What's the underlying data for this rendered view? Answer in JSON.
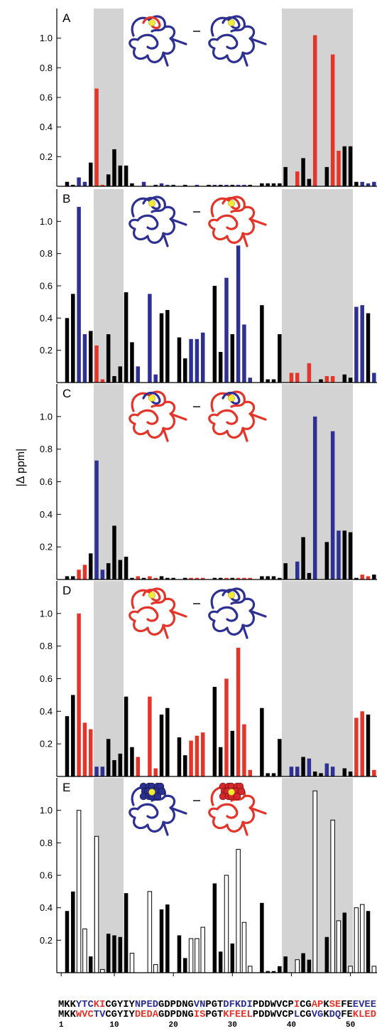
{
  "chart_data": [
    {
      "type": "bar",
      "title": "A",
      "x": [
        1,
        2,
        3,
        4,
        5,
        6,
        7,
        8,
        9,
        10,
        11,
        12,
        13,
        14,
        15,
        16,
        17,
        18,
        19,
        20,
        21,
        22,
        23,
        24,
        25,
        26,
        27,
        28,
        29,
        30,
        31,
        32,
        33,
        34,
        35,
        36,
        37,
        38,
        39,
        40,
        41,
        42,
        43,
        44,
        45,
        46,
        47,
        48,
        49,
        50,
        51,
        52,
        53,
        54
      ],
      "xlim": [
        0.5,
        54.5
      ],
      "values": [
        null,
        0.03,
        0.01,
        0.06,
        0.03,
        0.16,
        0.66,
        0.01,
        0.08,
        0.25,
        0.14,
        0.14,
        0.02,
        null,
        0.03,
        null,
        0.01,
        0.02,
        0.01,
        0.01,
        null,
        0.01,
        null,
        0.01,
        null,
        0.01,
        0.01,
        0.01,
        0.01,
        0.01,
        0.01,
        0.01,
        0.01,
        null,
        0.02,
        0.02,
        0.02,
        0.02,
        0.13,
        null,
        0.1,
        0.19,
        0.05,
        1.02,
        null,
        0.13,
        0.89,
        0.24,
        0.27,
        0.27,
        0.03,
        0.03,
        0.02,
        0.03
      ],
      "colors": [
        null,
        "#000",
        "#000",
        "#2e3192",
        "#2e3192",
        "#000",
        "#e4352b",
        "#e4352b",
        "#000",
        "#000",
        "#000",
        "#000",
        "#000",
        null,
        "#2e3192",
        null,
        "#000",
        "#2e3192",
        "#2e3192",
        "#000",
        null,
        "#000",
        null,
        "#2e3192",
        null,
        "#000",
        "#2e3192",
        "#000",
        "#2e3192",
        "#000",
        "#2e3192",
        "#2e3192",
        "#000",
        null,
        "#000",
        "#000",
        "#000",
        "#000",
        "#000",
        null,
        "#e4352b",
        "#000",
        "#000",
        "#e4352b",
        null,
        "#000",
        "#e4352b",
        "#e4352b",
        "#000",
        "#000",
        "#000",
        "#2e3192",
        "#2e3192",
        "#2e3192"
      ],
      "ylim": [
        0,
        1.2
      ],
      "yticks": [
        0.2,
        0.4,
        0.6,
        0.8,
        {
          "value": 1.0,
          "label": "1.0"
        }
      ]
    },
    {
      "type": "bar",
      "title": "B",
      "x": [
        1,
        2,
        3,
        4,
        5,
        6,
        7,
        8,
        9,
        10,
        11,
        12,
        13,
        14,
        15,
        16,
        17,
        18,
        19,
        20,
        21,
        22,
        23,
        24,
        25,
        26,
        27,
        28,
        29,
        30,
        31,
        32,
        33,
        34,
        35,
        36,
        37,
        38,
        39,
        40,
        41,
        42,
        43,
        44,
        45,
        46,
        47,
        48,
        49,
        50,
        51,
        52,
        53,
        54
      ],
      "xlim": [
        0.5,
        54.5
      ],
      "values": [
        null,
        0.4,
        0.55,
        1.09,
        0.3,
        0.32,
        0.23,
        0.02,
        0.3,
        0.04,
        0.1,
        0.56,
        0.25,
        0.1,
        null,
        0.55,
        0.05,
        0.43,
        0.45,
        null,
        0.28,
        0.15,
        0.27,
        0.27,
        0.31,
        null,
        0.6,
        0.19,
        0.65,
        0.3,
        0.85,
        0.36,
        0.03,
        null,
        0.48,
        0.02,
        0.02,
        0.3,
        null,
        0.06,
        0.06,
        null,
        0.12,
        null,
        0.02,
        0.04,
        0.04,
        null,
        0.05,
        0.03,
        0.47,
        0.48,
        0.43,
        0.06
      ],
      "colors": [
        null,
        "#000",
        "#000",
        "#2e3192",
        "#2e3192",
        "#000",
        "#e4352b",
        "#e4352b",
        "#000",
        "#000",
        "#000",
        "#000",
        "#000",
        "#2e3192",
        null,
        "#2e3192",
        "#2e3192",
        "#000",
        "#000",
        null,
        "#000",
        "#000",
        "#2e3192",
        "#2e3192",
        "#2e3192",
        null,
        "#000",
        "#000",
        "#2e3192",
        "#000",
        "#2e3192",
        "#2e3192",
        "#2e3192",
        null,
        "#000",
        "#000",
        "#000",
        "#000",
        null,
        "#e4352b",
        "#e4352b",
        null,
        "#e4352b",
        null,
        "#000",
        "#e4352b",
        "#e4352b",
        null,
        "#000",
        "#000",
        "#2e3192",
        "#2e3192",
        "#000",
        "#2e3192"
      ],
      "ylim": [
        0,
        1.2
      ],
      "yticks": [
        0.2,
        0.4,
        0.6,
        0.8,
        {
          "value": 1.0,
          "label": "1.0"
        }
      ]
    },
    {
      "type": "bar",
      "title": "C",
      "ylabel": "|Δ ppm|",
      "x": [
        1,
        2,
        3,
        4,
        5,
        6,
        7,
        8,
        9,
        10,
        11,
        12,
        13,
        14,
        15,
        16,
        17,
        18,
        19,
        20,
        21,
        22,
        23,
        24,
        25,
        26,
        27,
        28,
        29,
        30,
        31,
        32,
        33,
        34,
        35,
        36,
        37,
        38,
        39,
        40,
        41,
        42,
        43,
        44,
        45,
        46,
        47,
        48,
        49,
        50,
        51,
        52,
        53,
        54
      ],
      "xlim": [
        0.5,
        54.5
      ],
      "values": [
        null,
        0.02,
        0.02,
        0.06,
        0.09,
        0.16,
        0.73,
        0.06,
        0.1,
        0.33,
        0.12,
        0.14,
        0.01,
        0.02,
        0.01,
        0.02,
        0.01,
        0.02,
        0.01,
        0.01,
        null,
        0.01,
        0.01,
        0.01,
        0.01,
        null,
        0.01,
        0.01,
        0.01,
        0.01,
        0.01,
        0.01,
        0.01,
        null,
        0.02,
        0.02,
        0.02,
        0.01,
        0.1,
        null,
        0.11,
        0.26,
        0.04,
        1.0,
        null,
        0.23,
        0.91,
        0.3,
        0.3,
        0.29,
        0.01,
        0.03,
        0.02,
        0.03
      ],
      "colors": [
        null,
        "#000",
        "#000",
        "#e4352b",
        "#e4352b",
        "#000",
        "#2e3192",
        "#2e3192",
        "#000",
        "#000",
        "#000",
        "#000",
        "#000",
        "#e4352b",
        "#000",
        "#e4352b",
        "#e4352b",
        "#000",
        "#000",
        "#000",
        null,
        "#000",
        "#e4352b",
        "#e4352b",
        "#e4352b",
        null,
        "#000",
        "#000",
        "#e4352b",
        "#000",
        "#e4352b",
        "#e4352b",
        "#e4352b",
        null,
        "#000",
        "#000",
        "#000",
        "#000",
        "#000",
        null,
        "#2e3192",
        "#000",
        "#000",
        "#2e3192",
        null,
        "#000",
        "#2e3192",
        "#2e3192",
        "#000",
        "#000",
        "#000",
        "#e4352b",
        "#e4352b",
        "#000"
      ],
      "ylim": [
        0,
        1.2
      ],
      "yticks": [
        0.2,
        0.4,
        0.6,
        0.8,
        {
          "value": 1.0,
          "label": "1.0"
        }
      ]
    },
    {
      "type": "bar",
      "title": "D",
      "x": [
        1,
        2,
        3,
        4,
        5,
        6,
        7,
        8,
        9,
        10,
        11,
        12,
        13,
        14,
        15,
        16,
        17,
        18,
        19,
        20,
        21,
        22,
        23,
        24,
        25,
        26,
        27,
        28,
        29,
        30,
        31,
        32,
        33,
        34,
        35,
        36,
        37,
        38,
        39,
        40,
        41,
        42,
        43,
        44,
        45,
        46,
        47,
        48,
        49,
        50,
        51,
        52,
        53,
        54
      ],
      "xlim": [
        0.5,
        54.5
      ],
      "values": [
        null,
        0.37,
        0.5,
        1.0,
        0.33,
        0.29,
        0.06,
        0.06,
        0.23,
        0.1,
        0.14,
        0.49,
        0.18,
        0.12,
        null,
        0.49,
        0.05,
        0.38,
        0.42,
        null,
        0.24,
        0.13,
        0.22,
        0.25,
        0.27,
        null,
        0.55,
        0.18,
        0.6,
        0.28,
        0.79,
        0.32,
        0.04,
        null,
        0.42,
        0.02,
        0.02,
        0.23,
        null,
        0.06,
        0.06,
        0.12,
        0.11,
        0.03,
        0.02,
        0.08,
        0.06,
        null,
        0.05,
        0.03,
        0.36,
        0.4,
        0.38,
        0.04
      ],
      "colors": [
        null,
        "#000",
        "#000",
        "#e4352b",
        "#e4352b",
        "#e4352b",
        "#2e3192",
        "#2e3192",
        "#000",
        "#000",
        "#000",
        "#000",
        "#000",
        "#e4352b",
        null,
        "#e4352b",
        "#e4352b",
        "#000",
        "#000",
        null,
        "#000",
        "#000",
        "#e4352b",
        "#e4352b",
        "#e4352b",
        null,
        "#000",
        "#000",
        "#e4352b",
        "#000",
        "#e4352b",
        "#e4352b",
        "#e4352b",
        null,
        "#000",
        "#000",
        "#000",
        "#000",
        null,
        "#2e3192",
        "#2e3192",
        "#000",
        "#2e3192",
        "#000",
        "#000",
        "#2e3192",
        "#2e3192",
        null,
        "#000",
        "#000",
        "#e4352b",
        "#e4352b",
        "#000",
        "#e4352b"
      ],
      "ylim": [
        0,
        1.2
      ],
      "yticks": [
        0.2,
        0.4,
        0.6,
        0.8,
        {
          "value": 1.0,
          "label": "1.0"
        }
      ]
    },
    {
      "type": "bar",
      "title": "E",
      "x": [
        1,
        2,
        3,
        4,
        5,
        6,
        7,
        8,
        9,
        10,
        11,
        12,
        13,
        14,
        15,
        16,
        17,
        18,
        19,
        20,
        21,
        22,
        23,
        24,
        25,
        26,
        27,
        28,
        29,
        30,
        31,
        32,
        33,
        34,
        35,
        36,
        37,
        38,
        39,
        40,
        41,
        42,
        43,
        44,
        45,
        46,
        47,
        48,
        49,
        50,
        51,
        52,
        53,
        54
      ],
      "xlim": [
        0.5,
        54.5
      ],
      "xticks": [
        1,
        10,
        20,
        30,
        40,
        50
      ],
      "values": [
        null,
        0.38,
        0.5,
        1.0,
        0.27,
        0.1,
        0.84,
        0.02,
        0.24,
        0.23,
        0.22,
        0.49,
        0.12,
        null,
        null,
        0.5,
        0.05,
        0.39,
        0.42,
        null,
        0.23,
        0.09,
        0.21,
        0.21,
        0.28,
        null,
        0.55,
        0.13,
        0.6,
        0.18,
        0.76,
        0.31,
        0.04,
        null,
        0.43,
        0.01,
        0.01,
        0.04,
        0.1,
        null,
        0.08,
        0.12,
        0.08,
        1.12,
        null,
        0.22,
        0.94,
        0.32,
        0.37,
        0.04,
        0.4,
        0.42,
        0.38,
        0.04
      ],
      "colors": [
        null,
        "#000",
        "#000",
        "#fff",
        "#fff",
        "#000",
        "#fff",
        "#fff",
        "#000",
        "#000",
        "#000",
        "#000",
        "#fff",
        null,
        null,
        "#fff",
        "#fff",
        "#000",
        "#000",
        null,
        "#000",
        "#000",
        "#fff",
        "#fff",
        "#fff",
        null,
        "#000",
        "#000",
        "#fff",
        "#000",
        "#fff",
        "#fff",
        "#fff",
        null,
        "#000",
        "#000",
        "#000",
        "#000",
        "#000",
        null,
        "#fff",
        "#000",
        "#000",
        "#fff",
        null,
        "#000",
        "#fff",
        "#fff",
        "#000",
        "#fff",
        "#fff",
        "#fff",
        "#000",
        "#fff"
      ],
      "ylim": [
        0,
        1.2
      ],
      "yticks": [
        0.2,
        0.4,
        0.6,
        0.8,
        {
          "value": 1.0,
          "label": "1.0"
        }
      ],
      "sequences": [
        {
          "segments": [
            {
              "text": "MKK",
              "color": "#000"
            },
            {
              "text": "YTC",
              "color": "#2e3192"
            },
            {
              "text": "KI",
              "color": "#e4352b"
            },
            {
              "text": "CGYIY",
              "color": "#000"
            },
            {
              "text": "NPED",
              "color": "#2e3192"
            },
            {
              "text": "GDPDNG",
              "color": "#000"
            },
            {
              "text": "VN",
              "color": "#2e3192"
            },
            {
              "text": "PGT",
              "color": "#000"
            },
            {
              "text": "DFKDI",
              "color": "#2e3192"
            },
            {
              "text": "PDDWVCP",
              "color": "#000"
            },
            {
              "text": "I",
              "color": "#e4352b"
            },
            {
              "text": "CG",
              "color": "#000"
            },
            {
              "text": "AP",
              "color": "#e4352b"
            },
            {
              "text": "K",
              "color": "#000"
            },
            {
              "text": "SE",
              "color": "#e4352b"
            },
            {
              "text": "FE",
              "color": "#000"
            },
            {
              "text": "EVEE",
              "color": "#2e3192"
            }
          ]
        },
        {
          "segments": [
            {
              "text": "MKK",
              "color": "#000"
            },
            {
              "text": "WVC",
              "color": "#e4352b"
            },
            {
              "text": "TV",
              "color": "#2e3192"
            },
            {
              "text": "CGYIY",
              "color": "#000"
            },
            {
              "text": "DEDA",
              "color": "#e4352b"
            },
            {
              "text": "GDPDNG",
              "color": "#000"
            },
            {
              "text": "IS",
              "color": "#e4352b"
            },
            {
              "text": "PGT",
              "color": "#000"
            },
            {
              "text": "KFEEL",
              "color": "#e4352b"
            },
            {
              "text": "PDDWVCP",
              "color": "#000"
            },
            {
              "text": "L",
              "color": "#2e3192"
            },
            {
              "text": "CG",
              "color": "#000"
            },
            {
              "text": "VG",
              "color": "#2e3192"
            },
            {
              "text": "K",
              "color": "#000"
            },
            {
              "text": "DQ",
              "color": "#2e3192"
            },
            {
              "text": "FE",
              "color": "#000"
            },
            {
              "text": "KLED",
              "color": "#e4352b"
            }
          ]
        }
      ]
    }
  ]
}
